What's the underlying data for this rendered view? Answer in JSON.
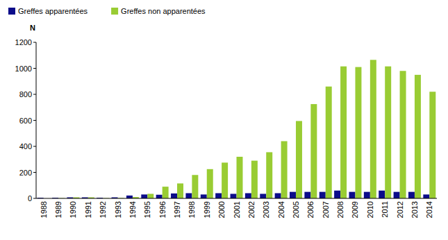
{
  "chart_data": {
    "type": "bar",
    "y_label": "N",
    "categories": [
      "1988",
      "1989",
      "1990",
      "1991",
      "1992",
      "1993",
      "1994",
      "1995",
      "1996",
      "1997",
      "1998",
      "1999",
      "2000",
      "2001",
      "2002",
      "2003",
      "2004",
      "2005",
      "2006",
      "2007",
      "2008",
      "2009",
      "2010",
      "2011",
      "2012",
      "2013",
      "2014"
    ],
    "series": [
      {
        "name": "Greffes apparentées",
        "color": "#0c0c8a",
        "values": [
          5,
          5,
          8,
          8,
          5,
          8,
          22,
          30,
          28,
          38,
          40,
          30,
          40,
          35,
          40,
          35,
          40,
          50,
          50,
          50,
          60,
          50,
          50,
          60,
          50,
          50,
          30
        ]
      },
      {
        "name": "Greffes non apparentées",
        "color": "#99cc33",
        "values": [
          0,
          2,
          8,
          8,
          2,
          3,
          10,
          35,
          90,
          115,
          180,
          225,
          275,
          320,
          290,
          355,
          440,
          595,
          725,
          860,
          1015,
          1010,
          1065,
          1015,
          980,
          950,
          820
        ]
      }
    ],
    "ylim": [
      0,
      1200
    ],
    "yticks": [
      0,
      200,
      400,
      600,
      800,
      1000,
      1200
    ],
    "grid": false,
    "legend": "top-left"
  }
}
